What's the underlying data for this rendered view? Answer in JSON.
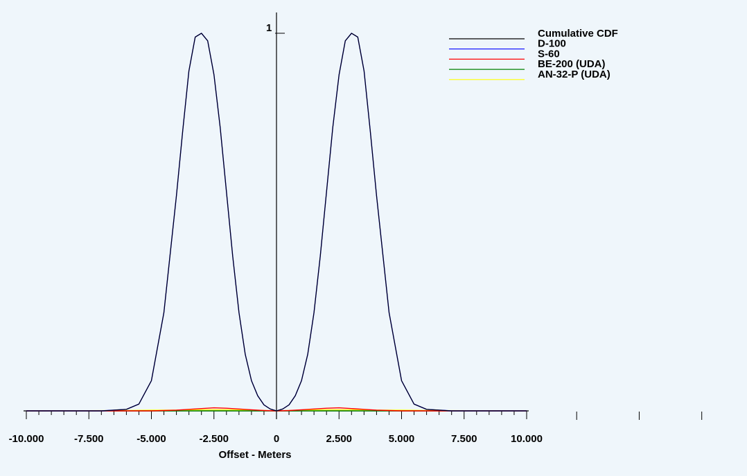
{
  "chart_data": {
    "type": "line",
    "title": "",
    "xlabel": "Offset - Meters",
    "ylabel": "",
    "xlim": [
      -10,
      10
    ],
    "ylim": [
      0,
      1
    ],
    "x_tick_labels": [
      "-10.000",
      "-7.500",
      "-5.000",
      "-2.500",
      "0",
      "2.500",
      "5.000",
      "7.500",
      "10.000"
    ],
    "x_ticks": [
      -10,
      -7.5,
      -5,
      -2.5,
      0,
      2.5,
      5,
      7.5,
      10
    ],
    "y_max_label": "1",
    "legend_position": "top-right",
    "series": [
      {
        "name": "Cumulative CDF",
        "color": "#000000",
        "x": [
          -10,
          -7,
          -6,
          -5.5,
          -5,
          -4.5,
          -4,
          -3.75,
          -3.5,
          -3.25,
          -3,
          -2.75,
          -2.5,
          -2.25,
          -2,
          -1.75,
          -1.5,
          -1.25,
          -1,
          -0.75,
          -0.5,
          -0.25,
          0,
          0.25,
          0.5,
          0.75,
          1,
          1.25,
          1.5,
          1.75,
          2,
          2.25,
          2.5,
          2.75,
          3,
          3.25,
          3.5,
          3.75,
          4,
          4.5,
          5,
          5.5,
          6,
          7,
          10
        ],
        "y": [
          0,
          0,
          0.004,
          0.018,
          0.08,
          0.26,
          0.57,
          0.74,
          0.9,
          0.99,
          1,
          0.98,
          0.89,
          0.75,
          0.58,
          0.41,
          0.26,
          0.15,
          0.08,
          0.04,
          0.016,
          0.005,
          0,
          0.005,
          0.016,
          0.04,
          0.08,
          0.15,
          0.26,
          0.41,
          0.58,
          0.75,
          0.89,
          0.98,
          1,
          0.99,
          0.9,
          0.74,
          0.57,
          0.26,
          0.08,
          0.018,
          0.004,
          0,
          0
        ]
      },
      {
        "name": "D-100",
        "color": "#0000ff",
        "x": [
          -10,
          -7,
          -6,
          -5.5,
          -5,
          -4.5,
          -4,
          -3.75,
          -3.5,
          -3.25,
          -3,
          -2.75,
          -2.5,
          -2.25,
          -2,
          -1.75,
          -1.5,
          -1.25,
          -1,
          -0.75,
          -0.5,
          -0.25,
          0,
          0.25,
          0.5,
          0.75,
          1,
          1.25,
          1.5,
          1.75,
          2,
          2.25,
          2.5,
          2.75,
          3,
          3.25,
          3.5,
          3.75,
          4,
          4.5,
          5,
          5.5,
          6,
          7,
          10
        ],
        "y": [
          0,
          0,
          0.004,
          0.018,
          0.08,
          0.26,
          0.57,
          0.74,
          0.9,
          0.99,
          1,
          0.98,
          0.89,
          0.75,
          0.58,
          0.41,
          0.26,
          0.15,
          0.08,
          0.04,
          0.016,
          0.005,
          0,
          0.005,
          0.016,
          0.04,
          0.08,
          0.15,
          0.26,
          0.41,
          0.58,
          0.75,
          0.89,
          0.98,
          1,
          0.99,
          0.9,
          0.74,
          0.57,
          0.26,
          0.08,
          0.018,
          0.004,
          0,
          0
        ]
      },
      {
        "name": "S-60",
        "color": "#ff0000",
        "x": [
          -10,
          -5,
          -4.5,
          -4,
          -3.5,
          -3,
          -2.5,
          -2,
          -1.5,
          -1,
          -0.5,
          0,
          0.5,
          1,
          1.5,
          2,
          2.5,
          3,
          3.5,
          4,
          4.5,
          5,
          10
        ],
        "y": [
          0,
          0,
          0.001,
          0.002,
          0.004,
          0.006,
          0.008,
          0.007,
          0.005,
          0.003,
          0.001,
          0,
          0.001,
          0.003,
          0.005,
          0.007,
          0.008,
          0.006,
          0.004,
          0.002,
          0.001,
          0,
          0
        ]
      },
      {
        "name": "BE-200 (UDA)",
        "color": "#008000",
        "x": [
          -10,
          10
        ],
        "y": [
          0,
          0
        ]
      },
      {
        "name": "AN-32-P (UDA)",
        "color": "#ffff00",
        "x": [
          -10,
          -6,
          -5,
          -4,
          -3,
          -2,
          -1,
          0,
          1,
          2,
          3,
          4,
          5,
          6,
          10
        ],
        "y": [
          0,
          0.001,
          0.002,
          0.002,
          0.003,
          0.003,
          0.002,
          0,
          0.002,
          0.003,
          0.003,
          0.002,
          0.002,
          0.001,
          0
        ]
      }
    ]
  }
}
